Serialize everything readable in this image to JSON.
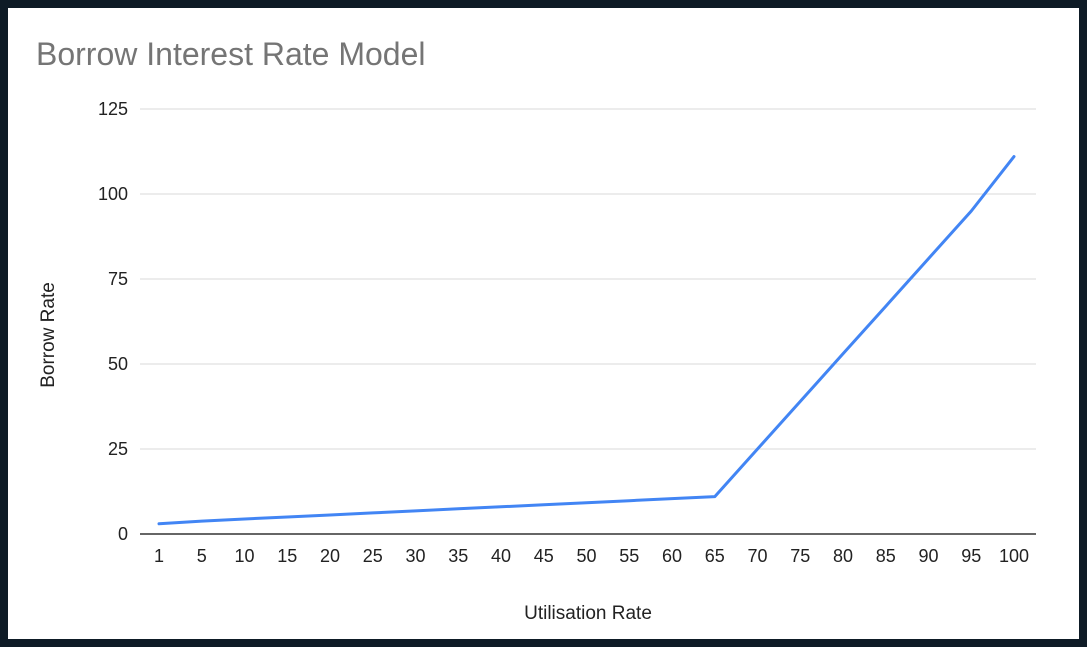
{
  "chart_data": {
    "type": "line",
    "title": "Borrow Interest Rate Model",
    "xlabel": "Utilisation Rate",
    "ylabel": "Borrow Rate",
    "categories": [
      "1",
      "5",
      "10",
      "15",
      "20",
      "25",
      "30",
      "35",
      "40",
      "45",
      "50",
      "55",
      "60",
      "65",
      "70",
      "75",
      "80",
      "85",
      "90",
      "95",
      "100"
    ],
    "series": [
      {
        "values": [
          3,
          3.8,
          4.4,
          5.0,
          5.6,
          6.2,
          6.8,
          7.4,
          8.0,
          8.6,
          9.2,
          9.8,
          10.4,
          11,
          25,
          39,
          53,
          67,
          81,
          95,
          111
        ]
      }
    ],
    "yticks": [
      "0",
      "25",
      "50",
      "75",
      "100",
      "125"
    ],
    "ylim": [
      0,
      125
    ],
    "grid": true,
    "legend": "none",
    "colors": {
      "line": "#4285f4",
      "grid": "#d9d9d9",
      "axis": "#333333",
      "title": "#757575",
      "tick_text": "#222222",
      "background": "#ffffff",
      "frame": "#0e1b26"
    }
  }
}
